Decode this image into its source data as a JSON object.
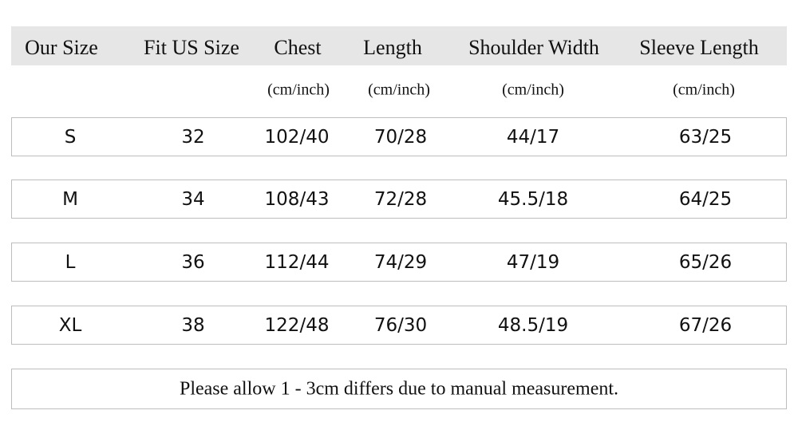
{
  "header": [
    "Our Size",
    "Fit US Size",
    "Chest",
    "Length",
    "Shoulder Width",
    "Sleeve Length"
  ],
  "units": [
    "(cm/inch)",
    "(cm/inch)",
    "(cm/inch)",
    "(cm/inch)"
  ],
  "rows": [
    [
      "S",
      "32",
      "102/40",
      "70/28",
      "44/17",
      "63/25"
    ],
    [
      "M",
      "34",
      "108/43",
      "72/28",
      "45.5/18",
      "64/25"
    ],
    [
      "L",
      "36",
      "112/44",
      "74/29",
      "47/19",
      "65/26"
    ],
    [
      "XL",
      "38",
      "122/48",
      "76/30",
      "48.5/19",
      "67/26"
    ]
  ],
  "note": "Please allow 1 - 3cm differs due to manual measurement."
}
